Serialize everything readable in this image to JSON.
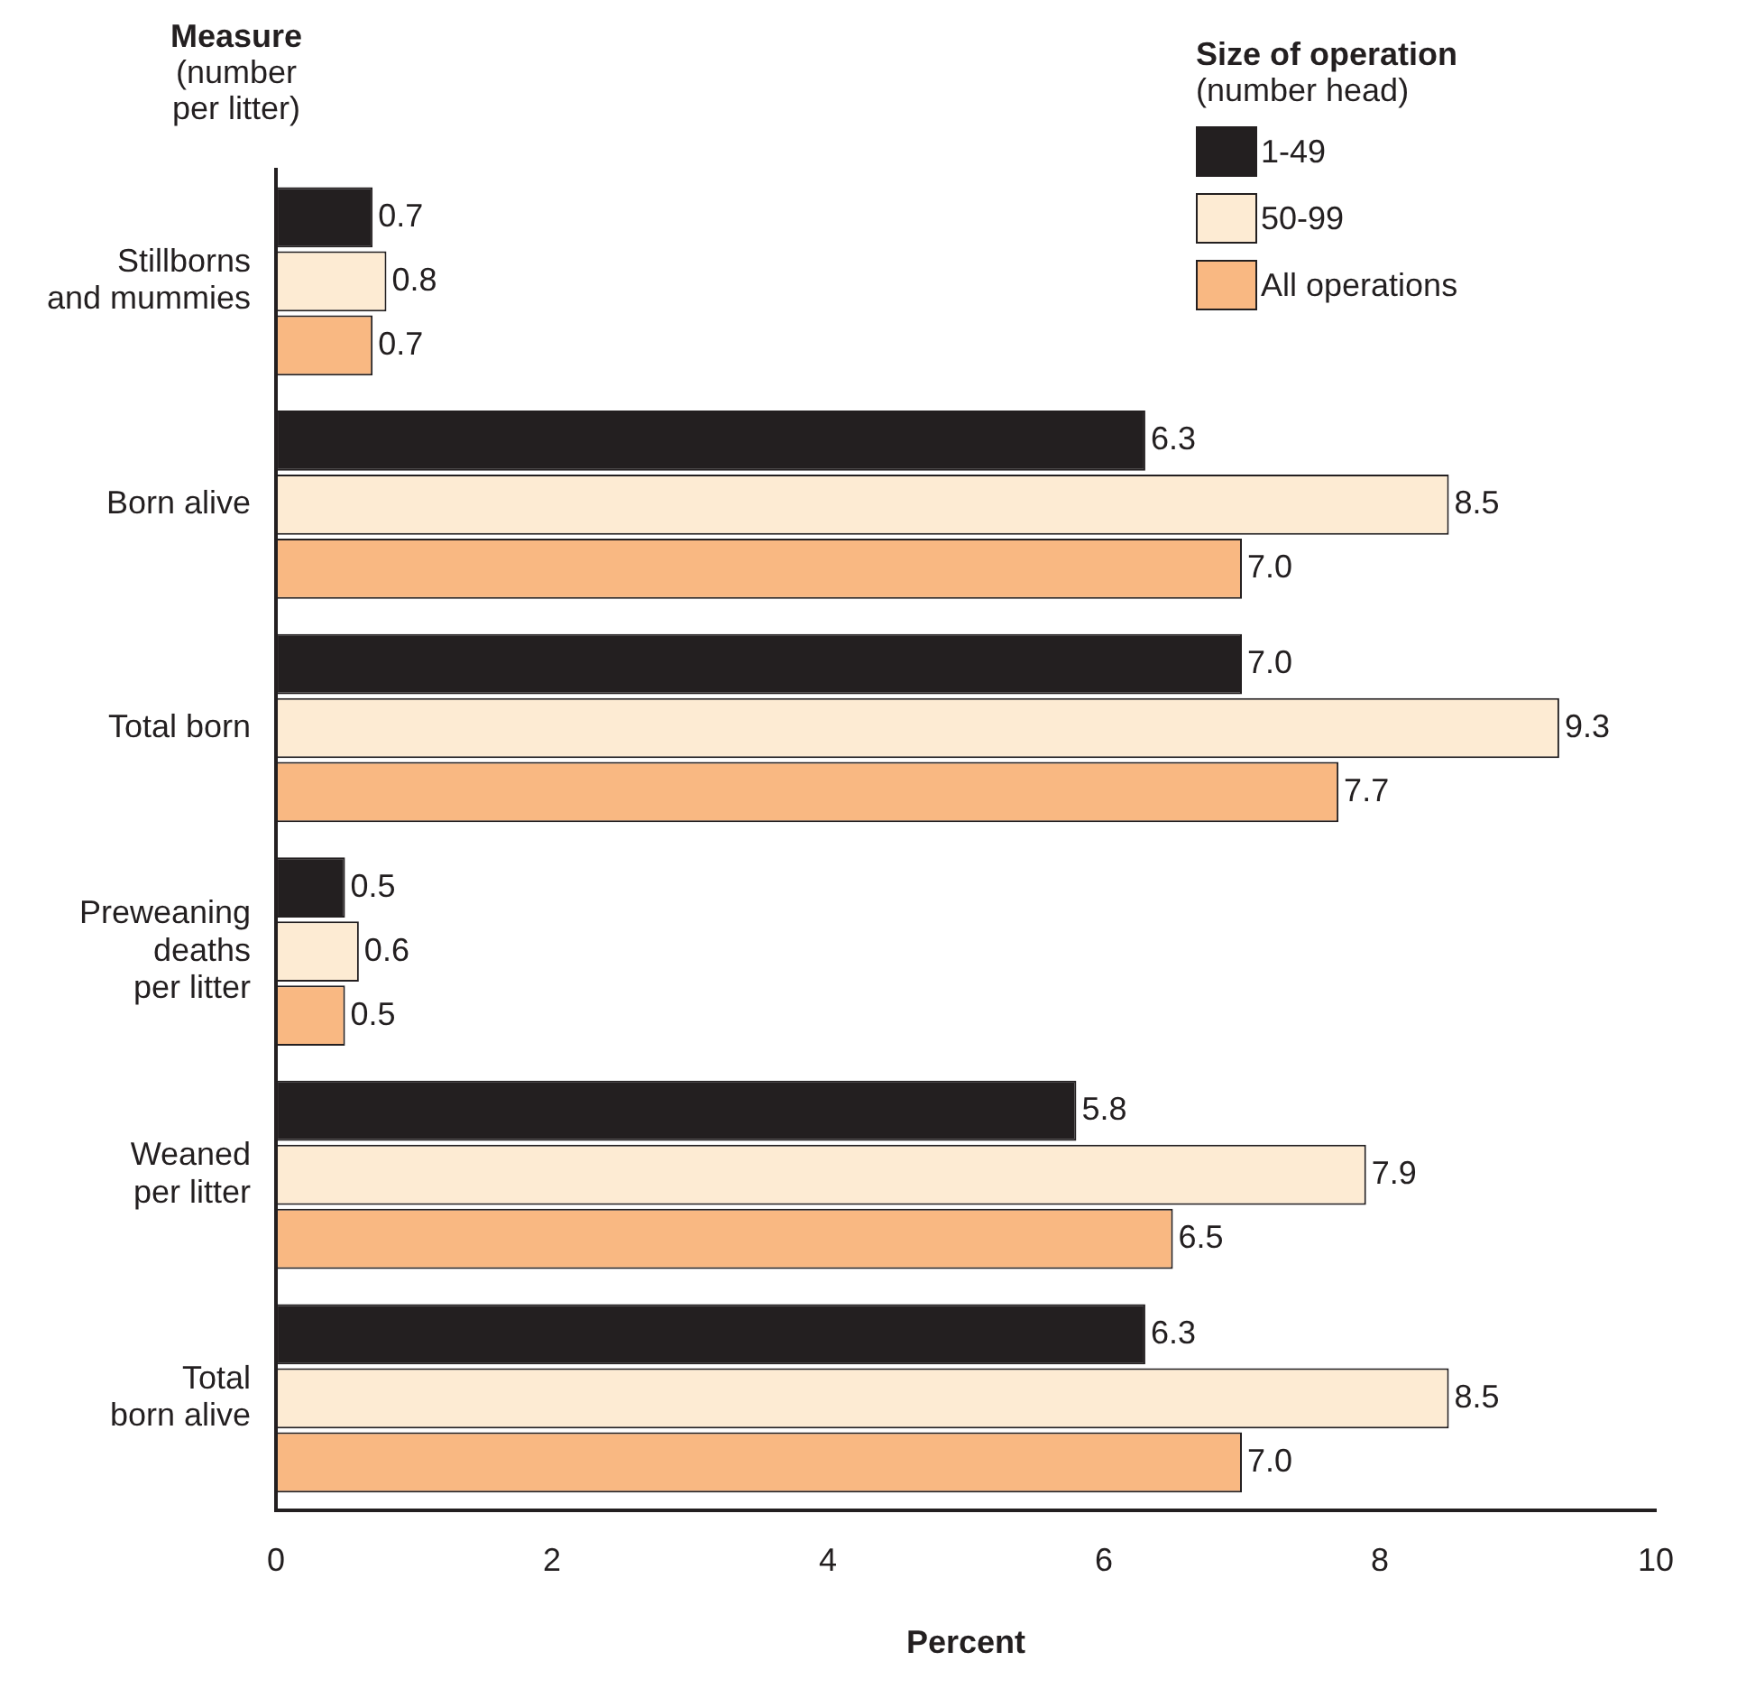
{
  "chart_data": {
    "type": "bar",
    "orientation": "horizontal",
    "ylabel": "Measure\n(number\nper litter)",
    "xlabel": "Percent",
    "legend_title": "Size of operation\n(number head)",
    "categories": [
      "Stillborns\nand mummies",
      "Born alive",
      "Total born",
      "Preweaning\ndeaths\nper litter",
      "Weaned\nper litter",
      "Total\nborn alive"
    ],
    "series": [
      {
        "name": "1-49",
        "color": "#231f20",
        "values": [
          0.7,
          6.3,
          7.0,
          0.5,
          5.8,
          6.3
        ],
        "value_labels": [
          "0.7",
          "6.3",
          "7.0",
          "0.5",
          "5.8",
          "6.3"
        ]
      },
      {
        "name": "50-99",
        "color": "#fdebd3",
        "values": [
          0.8,
          8.5,
          9.3,
          0.6,
          7.9,
          8.5
        ],
        "value_labels": [
          "0.8",
          "8.5",
          "9.3",
          "0.6",
          "7.9",
          "8.5"
        ]
      },
      {
        "name": "All operations",
        "color": "#f9b882",
        "values": [
          0.7,
          7.0,
          7.7,
          0.5,
          6.5,
          7.0
        ],
        "value_labels": [
          "0.7",
          "7.0",
          "7.7",
          "0.5",
          "6.5",
          "7.0"
        ]
      }
    ],
    "xlim": [
      0,
      10
    ],
    "xticks": [
      0,
      2,
      4,
      6,
      8,
      10
    ],
    "grid": false,
    "legend": "top right"
  }
}
